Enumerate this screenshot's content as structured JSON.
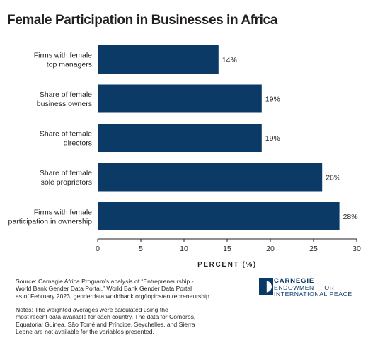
{
  "chart_data": {
    "type": "bar",
    "orientation": "horizontal",
    "title": "Female Participation in Businesses in Africa",
    "categories": [
      [
        "Firms with female",
        "top managers"
      ],
      [
        "Share of female",
        "business owners"
      ],
      [
        "Share of female",
        "directors"
      ],
      [
        "Share of female",
        "sole proprietors"
      ],
      [
        "Firms with female",
        "participation in ownership"
      ]
    ],
    "values": [
      14,
      19,
      19,
      26,
      28
    ],
    "data_labels": [
      "14%",
      "19%",
      "19%",
      "26%",
      "28%"
    ],
    "xlabel": "PERCENT (%)",
    "ylabel": "",
    "xlim": [
      0,
      30
    ],
    "xticks": [
      0,
      5,
      10,
      15,
      20,
      25,
      30
    ],
    "grid": false,
    "bar_color": "#0b3a66"
  },
  "source": "Source: Carnegie Africa Program’s analysis of “Entrepreneurship -\nWorld Bank Gender Data Portal.” World Bank Gender Data Portal\nas of February 2023, genderdata.worldbank.org/topics/entrepreneurship.",
  "notes": "Notes: The weighted averages were calculated using the\nmost recent data available for each country. The data for Comoros,\nEquatorial Guinea, São Tomé and Príncipe, Seychelles, and Sierra\nLeone are not available for the variables presented.",
  "logo": {
    "name": "CARNEGIE",
    "line1": "ENDOWMENT FOR",
    "line2": "INTERNATIONAL PEACE",
    "color": "#0b3a66"
  }
}
